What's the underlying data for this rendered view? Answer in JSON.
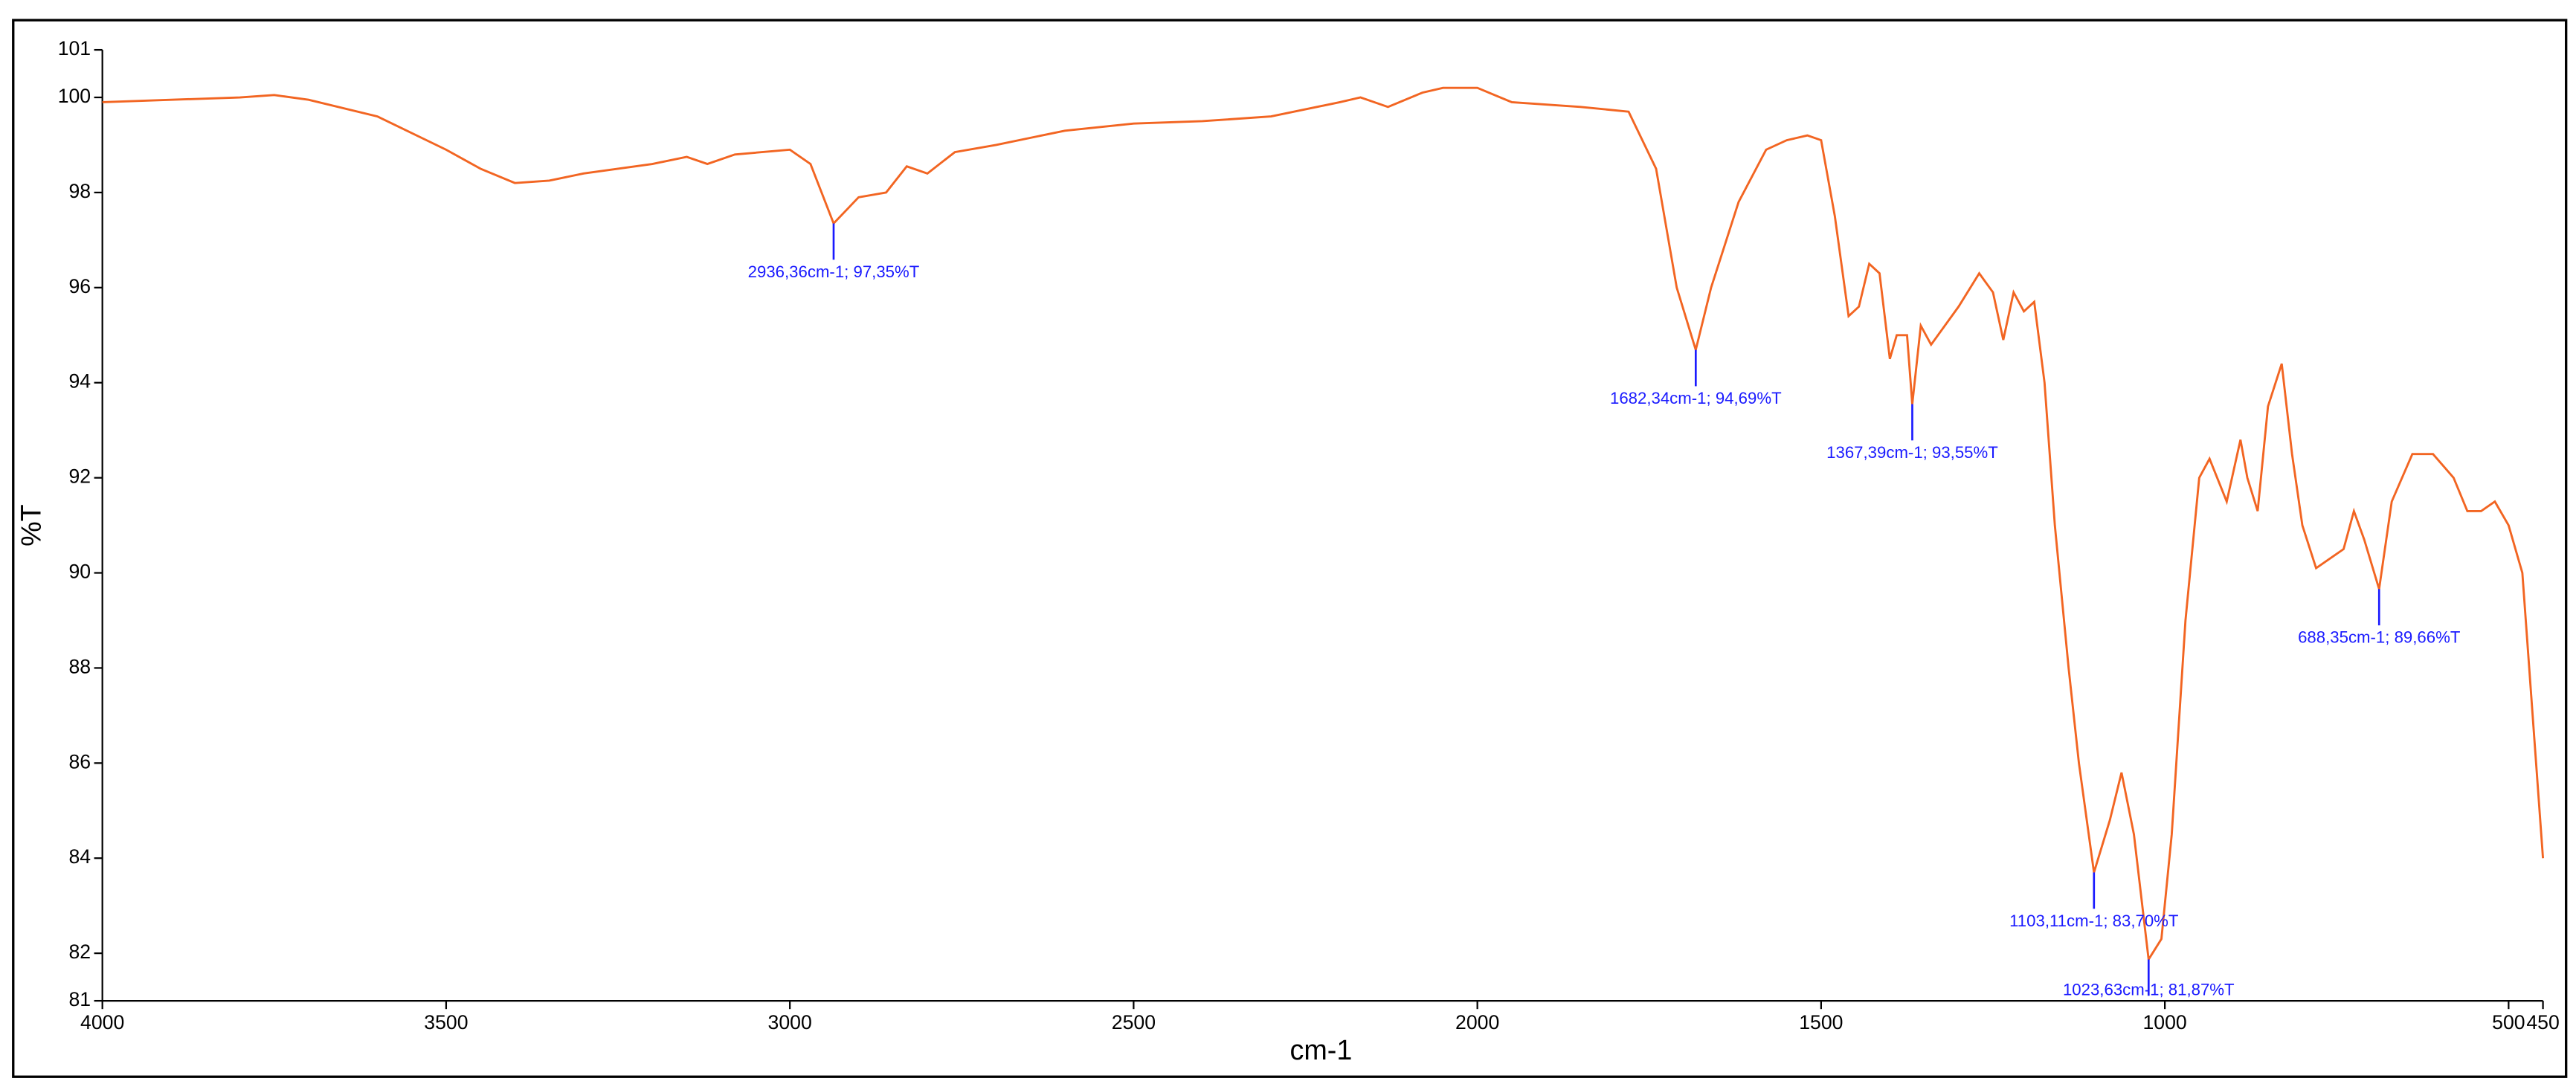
{
  "chart_data": {
    "type": "line",
    "x_label": "cm-1",
    "y_label": "%T",
    "color": "#f26522",
    "annotation_color": "#1a1aff",
    "x": [
      4000,
      3900,
      3800,
      3750,
      3700,
      3600,
      3500,
      3450,
      3400,
      3350,
      3300,
      3200,
      3150,
      3120,
      3080,
      3000,
      2970,
      2936.36,
      2900,
      2860,
      2830,
      2800,
      2760,
      2700,
      2600,
      2500,
      2400,
      2300,
      2200,
      2170,
      2130,
      2080,
      2050,
      2000,
      1950,
      1850,
      1780,
      1740,
      1710,
      1682.34,
      1660,
      1620,
      1580,
      1550,
      1520,
      1500,
      1480,
      1460,
      1445,
      1430,
      1415,
      1400,
      1390,
      1375,
      1367.39,
      1355,
      1340,
      1300,
      1270,
      1250,
      1235,
      1220,
      1205,
      1190,
      1175,
      1160,
      1140,
      1125,
      1103.11,
      1080,
      1063,
      1045,
      1023.63,
      1005,
      990,
      970,
      950,
      935,
      910,
      890,
      880,
      865,
      850,
      830,
      815,
      800,
      780,
      760,
      740,
      725,
      710,
      688.35,
      670,
      640,
      610,
      580,
      560,
      540,
      520,
      500,
      480,
      465,
      450
    ],
    "values": [
      99.9,
      99.95,
      100.0,
      100.05,
      99.95,
      99.6,
      98.9,
      98.5,
      98.2,
      98.25,
      98.4,
      98.6,
      98.75,
      98.6,
      98.8,
      98.9,
      98.6,
      97.35,
      97.9,
      98.0,
      98.55,
      98.4,
      98.85,
      99.0,
      99.3,
      99.45,
      99.5,
      99.6,
      99.9,
      100.0,
      99.8,
      100.1,
      100.2,
      100.2,
      99.9,
      99.8,
      99.7,
      98.5,
      96.0,
      94.69,
      96.0,
      97.8,
      98.9,
      99.1,
      99.2,
      99.1,
      97.5,
      95.4,
      95.6,
      96.5,
      96.3,
      94.5,
      95.0,
      95.0,
      93.55,
      95.2,
      94.8,
      95.6,
      96.3,
      95.9,
      94.9,
      95.9,
      95.5,
      95.7,
      94.0,
      91.0,
      88.0,
      86.0,
      83.7,
      84.8,
      85.8,
      84.5,
      81.87,
      82.3,
      84.5,
      89.0,
      92.0,
      92.4,
      91.5,
      92.8,
      92.0,
      91.3,
      93.5,
      94.4,
      92.5,
      91.0,
      90.1,
      90.3,
      90.5,
      91.3,
      90.7,
      89.66,
      91.5,
      92.5,
      92.5,
      92.0,
      91.3,
      91.3,
      91.5,
      91.0,
      90.0,
      87.0,
      84.0
    ],
    "xlim": [
      4000,
      450
    ],
    "xticks": [
      4000,
      3500,
      3000,
      2500,
      2000,
      1500,
      1000,
      500,
      450
    ],
    "ylim": [
      81,
      101
    ],
    "yticks": [
      81,
      82,
      84,
      86,
      88,
      90,
      92,
      94,
      96,
      98,
      100,
      101
    ],
    "annotations": [
      {
        "x": 2936.36,
        "y": 97.35,
        "label": "2936,36cm-1; 97,35%T"
      },
      {
        "x": 1682.34,
        "y": 94.69,
        "label": "1682,34cm-1; 94,69%T"
      },
      {
        "x": 1367.39,
        "y": 93.55,
        "label": "1367,39cm-1; 93,55%T"
      },
      {
        "x": 1103.11,
        "y": 83.7,
        "label": "1103,11cm-1; 83,70%T"
      },
      {
        "x": 1023.63,
        "y": 81.87,
        "label": "1023,63cm-1; 81,87%T"
      },
      {
        "x": 688.35,
        "y": 89.66,
        "label": "688,35cm-1; 89,66%T"
      }
    ]
  }
}
